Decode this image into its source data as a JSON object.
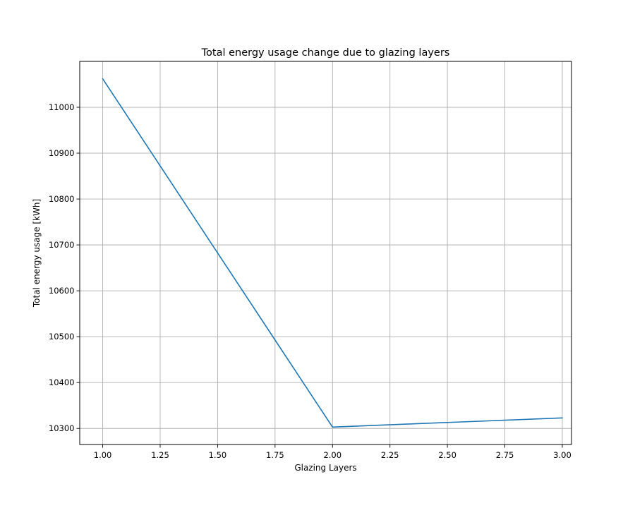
{
  "chart_data": {
    "type": "line",
    "title": "Total energy usage change due to glazing layers",
    "xlabel": "Glazing Layers",
    "ylabel": "Total energy usage [kWh]",
    "xlim": [
      0.9,
      3.04
    ],
    "ylim": [
      10265,
      11100
    ],
    "xticks": [
      1.0,
      1.25,
      1.5,
      1.75,
      2.0,
      2.25,
      2.5,
      2.75,
      3.0
    ],
    "xtick_labels": [
      "1.00",
      "1.25",
      "1.50",
      "1.75",
      "2.00",
      "2.25",
      "2.50",
      "2.75",
      "3.00"
    ],
    "yticks": [
      10300,
      10400,
      10500,
      10600,
      10700,
      10800,
      10900,
      11000
    ],
    "ytick_labels": [
      "10300",
      "10400",
      "10500",
      "10600",
      "10700",
      "10800",
      "10900",
      "11000"
    ],
    "grid": true,
    "series": [
      {
        "x": [
          1,
          2,
          3
        ],
        "y": [
          11062,
          10303,
          10323
        ],
        "color": "#1f77b4"
      }
    ]
  }
}
